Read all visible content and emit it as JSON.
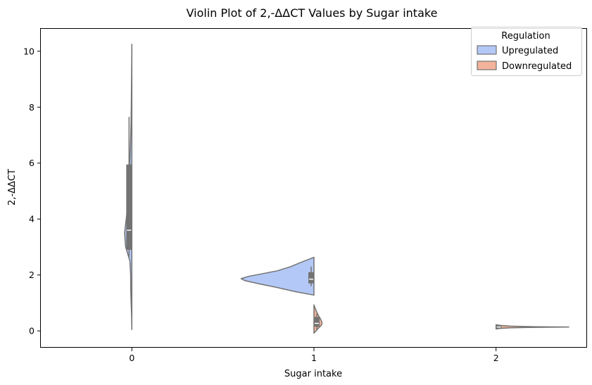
{
  "chart_data": {
    "type": "violin",
    "title": "Violin Plot of 2,-ΔΔCT Values by Sugar intake",
    "xlabel": "Sugar intake",
    "ylabel": "2,-ΔΔCT",
    "categories": [
      "0",
      "1",
      "2"
    ],
    "xlim": [
      -0.5,
      2.5
    ],
    "ylim": [
      -0.6,
      10.8
    ],
    "yticks": [
      0,
      2,
      4,
      6,
      8,
      10
    ],
    "legend": {
      "title": "Regulation",
      "location": "top-right",
      "entries": [
        {
          "label": "Upregulated",
          "color": "#b3c8f6"
        },
        {
          "label": "Downregulated",
          "color": "#f2b39a"
        }
      ]
    },
    "edge_color": "#737373",
    "box_color": "#737373",
    "series": [
      {
        "name": "Upregulated",
        "side": "left",
        "color": "#b3c8f6",
        "violins": [
          {
            "category": 0,
            "max_width": 0.04,
            "profile": [
              [
                0.05,
                0.0
              ],
              [
                0.5,
                0.03
              ],
              [
                1.0,
                0.1
              ],
              [
                1.5,
                0.16
              ],
              [
                2.0,
                0.17
              ],
              [
                2.5,
                0.27
              ],
              [
                3.0,
                0.85
              ],
              [
                3.5,
                1.0
              ],
              [
                4.0,
                0.78
              ],
              [
                4.5,
                0.55
              ],
              [
                5.0,
                0.43
              ],
              [
                5.5,
                0.36
              ],
              [
                6.0,
                0.29
              ],
              [
                6.5,
                0.22
              ],
              [
                7.0,
                0.16
              ],
              [
                7.5,
                0.11
              ],
              [
                8.0,
                0.08
              ],
              [
                8.5,
                0.06
              ],
              [
                9.0,
                0.04
              ],
              [
                9.5,
                0.02
              ],
              [
                10.25,
                0.0
              ]
            ],
            "box": {
              "q1": 2.9,
              "median": 3.6,
              "q3": 5.95,
              "whisker_low": 2.65,
              "whisker_high": 7.65
            }
          },
          {
            "category": 1,
            "max_width": 0.4,
            "profile": [
              [
                1.28,
                0.0
              ],
              [
                1.4,
                0.25
              ],
              [
                1.55,
                0.5
              ],
              [
                1.7,
                0.78
              ],
              [
                1.8,
                0.95
              ],
              [
                1.87,
                1.0
              ],
              [
                1.95,
                0.9
              ],
              [
                2.05,
                0.7
              ],
              [
                2.15,
                0.5
              ],
              [
                2.3,
                0.32
              ],
              [
                2.45,
                0.18
              ],
              [
                2.55,
                0.08
              ],
              [
                2.63,
                0.0
              ]
            ],
            "box": {
              "q1": 1.7,
              "median": 1.85,
              "q3": 2.1,
              "whisker_low": 1.6,
              "whisker_high": 2.3
            }
          }
        ]
      },
      {
        "name": "Downregulated",
        "side": "right",
        "color": "#f2b39a",
        "violins": [
          {
            "category": 1,
            "max_width": 0.045,
            "profile": [
              [
                -0.08,
                0.0
              ],
              [
                0.0,
                0.25
              ],
              [
                0.1,
                0.55
              ],
              [
                0.2,
                0.9
              ],
              [
                0.28,
                1.0
              ],
              [
                0.4,
                0.85
              ],
              [
                0.55,
                0.55
              ],
              [
                0.7,
                0.3
              ],
              [
                0.85,
                0.1
              ],
              [
                0.93,
                0.0
              ]
            ],
            "box": {
              "q1": 0.15,
              "median": 0.27,
              "q3": 0.5,
              "whisker_low": 0.05,
              "whisker_high": 0.62
            }
          },
          {
            "category": 2,
            "max_width": 0.4,
            "profile": [
              [
                0.07,
                0.0
              ],
              [
                0.09,
                0.05
              ],
              [
                0.11,
                0.2
              ],
              [
                0.125,
                0.45
              ],
              [
                0.135,
                0.9
              ],
              [
                0.14,
                1.0
              ],
              [
                0.15,
                0.55
              ],
              [
                0.17,
                0.2
              ],
              [
                0.2,
                0.05
              ],
              [
                0.22,
                0.0
              ]
            ],
            "box": {
              "q1": 0.08,
              "median": 0.14,
              "q3": 0.2,
              "whisker_low": 0.07,
              "whisker_high": 0.22
            }
          }
        ]
      }
    ]
  }
}
